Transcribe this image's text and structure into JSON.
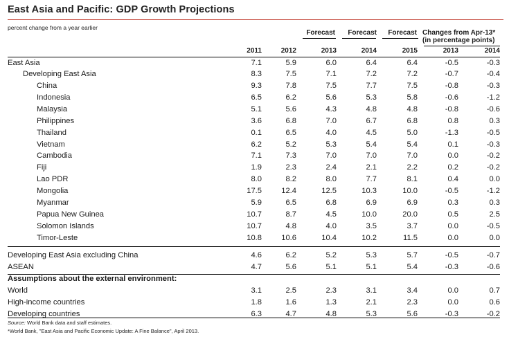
{
  "title": "East Asia and Pacific: GDP Growth Projections",
  "subtitle": "percent change from a year earlier",
  "header": {
    "forecast_labels": [
      "Forecast",
      "Forecast",
      "Forecast"
    ],
    "changes_line1": "Changes from Apr-13*",
    "changes_line2": "(in percentage points)",
    "years": [
      "2011",
      "2012",
      "2013",
      "2014",
      "2015",
      "2013",
      "2014"
    ]
  },
  "rows": [
    {
      "label": "East Asia",
      "indent": 0,
      "values": [
        "7.1",
        "5.9",
        "6.0",
        "6.4",
        "6.4",
        "-0.5",
        "-0.3"
      ]
    },
    {
      "label": "Developing East Asia",
      "indent": 1,
      "values": [
        "8.3",
        "7.5",
        "7.1",
        "7.2",
        "7.2",
        "-0.7",
        "-0.4"
      ]
    },
    {
      "label": "China",
      "indent": 2,
      "values": [
        "9.3",
        "7.8",
        "7.5",
        "7.7",
        "7.5",
        "-0.8",
        "-0.3"
      ]
    },
    {
      "label": "Indonesia",
      "indent": 2,
      "values": [
        "6.5",
        "6.2",
        "5.6",
        "5.3",
        "5.8",
        "-0.6",
        "-1.2"
      ]
    },
    {
      "label": "Malaysia",
      "indent": 2,
      "values": [
        "5.1",
        "5.6",
        "4.3",
        "4.8",
        "4.8",
        "-0.8",
        "-0.6"
      ]
    },
    {
      "label": "Philippines",
      "indent": 2,
      "values": [
        "3.6",
        "6.8",
        "7.0",
        "6.7",
        "6.8",
        "0.8",
        "0.3"
      ]
    },
    {
      "label": "Thailand",
      "indent": 2,
      "values": [
        "0.1",
        "6.5",
        "4.0",
        "4.5",
        "5.0",
        "-1.3",
        "-0.5"
      ]
    },
    {
      "label": "Vietnam",
      "indent": 2,
      "values": [
        "6.2",
        "5.2",
        "5.3",
        "5.4",
        "5.4",
        "0.1",
        "-0.3"
      ]
    },
    {
      "label": "Cambodia",
      "indent": 2,
      "values": [
        "7.1",
        "7.3",
        "7.0",
        "7.0",
        "7.0",
        "0.0",
        "-0.2"
      ]
    },
    {
      "label": "Fiji",
      "indent": 2,
      "values": [
        "1.9",
        "2.3",
        "2.4",
        "2.1",
        "2.2",
        "0.2",
        "-0.2"
      ]
    },
    {
      "label": "Lao PDR",
      "indent": 2,
      "values": [
        "8.0",
        "8.2",
        "8.0",
        "7.7",
        "8.1",
        "0.4",
        "0.0"
      ]
    },
    {
      "label": "Mongolia",
      "indent": 2,
      "values": [
        "17.5",
        "12.4",
        "12.5",
        "10.3",
        "10.0",
        "-0.5",
        "-1.2"
      ]
    },
    {
      "label": "Myanmar",
      "indent": 2,
      "values": [
        "5.9",
        "6.5",
        "6.8",
        "6.9",
        "6.9",
        "0.3",
        "0.3"
      ]
    },
    {
      "label": "Papua New Guinea",
      "indent": 2,
      "values": [
        "10.7",
        "8.7",
        "4.5",
        "10.0",
        "20.0",
        "0.5",
        "2.5"
      ]
    },
    {
      "label": "Solomon Islands",
      "indent": 2,
      "values": [
        "10.7",
        "4.8",
        "4.0",
        "3.5",
        "3.7",
        "0.0",
        "-0.5"
      ]
    },
    {
      "label": "Timor-Leste",
      "indent": 2,
      "values": [
        "10.8",
        "10.6",
        "10.4",
        "10.2",
        "11.5",
        "0.0",
        "0.0"
      ]
    },
    {
      "label": "Developing East Asia excluding China",
      "indent": 0,
      "values": [
        "4.6",
        "6.2",
        "5.2",
        "5.3",
        "5.7",
        "-0.5",
        "-0.7"
      ]
    },
    {
      "label": "ASEAN",
      "indent": 0,
      "values": [
        "4.7",
        "5.6",
        "5.1",
        "5.1",
        "5.4",
        "-0.3",
        "-0.6"
      ]
    },
    {
      "label": "Assumptions about the external environment:",
      "indent": 0,
      "section": true,
      "values": []
    },
    {
      "label": "World",
      "indent": 0,
      "values": [
        "3.1",
        "2.5",
        "2.3",
        "3.1",
        "3.4",
        "0.0",
        "0.7"
      ]
    },
    {
      "label": "High-income countries",
      "indent": 0,
      "values": [
        "1.8",
        "1.6",
        "1.3",
        "2.1",
        "2.3",
        "0.0",
        "0.6"
      ]
    },
    {
      "label": "Developing countries",
      "indent": 0,
      "values": [
        "6.3",
        "4.7",
        "4.8",
        "5.3",
        "5.6",
        "-0.3",
        "-0.2"
      ]
    }
  ],
  "footnotes": {
    "source_label": "Source:",
    "source_text": " World Bank data and staff estimates.",
    "note": "*World Bank, \"East Asia and Pacific Economic Update: A Fine Balance\", April 2013."
  }
}
